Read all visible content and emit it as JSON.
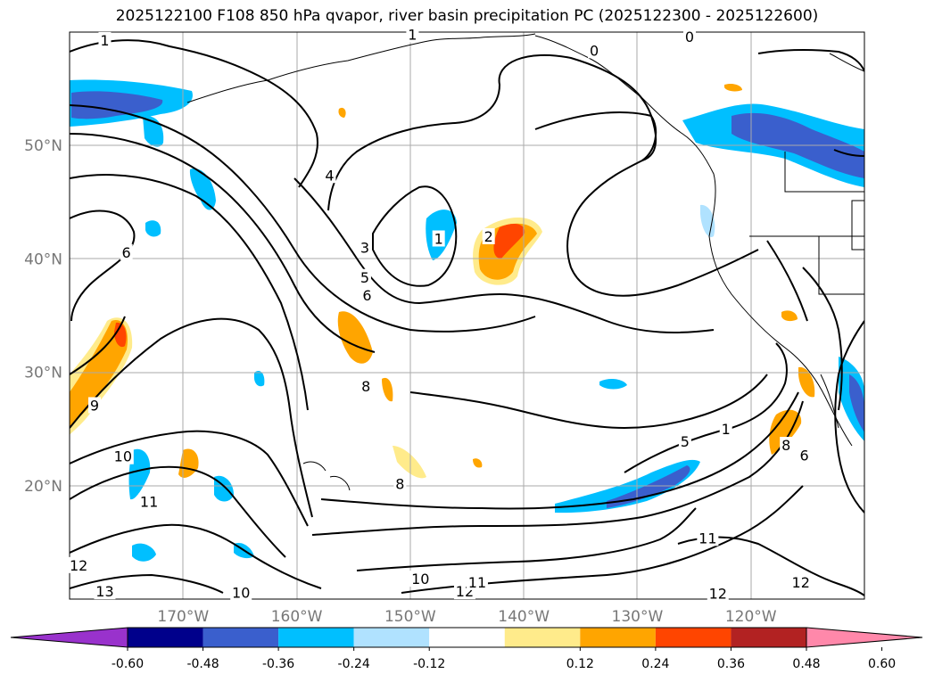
{
  "title": "2025122100 F108 850 hPa qvapor, river basin precipitation PC (2025122300 - 2025122600)",
  "map": {
    "lon_range": [
      -180,
      -110
    ],
    "lat_range": [
      10,
      60
    ],
    "lon_ticks": [
      {
        "value": -170,
        "label": "170°W"
      },
      {
        "value": -160,
        "label": "160°W"
      },
      {
        "value": -150,
        "label": "150°W"
      },
      {
        "value": -140,
        "label": "140°W"
      },
      {
        "value": -130,
        "label": "130°W"
      },
      {
        "value": -120,
        "label": "120°W"
      }
    ],
    "lat_ticks": [
      {
        "value": 20,
        "label": "20°N"
      },
      {
        "value": 30,
        "label": "30°N"
      },
      {
        "value": 40,
        "label": "40°N"
      },
      {
        "value": 50,
        "label": "50°N"
      }
    ],
    "gridlines": true,
    "contour_labels": [
      {
        "text": "1",
        "lon": -176.9,
        "lat": 59.3
      },
      {
        "text": "1",
        "lon": -149.8,
        "lat": 59.8
      },
      {
        "text": "0",
        "lon": -133.8,
        "lat": 58.4
      },
      {
        "text": "0",
        "lon": -125.4,
        "lat": 59.6
      },
      {
        "text": "4",
        "lon": -157.1,
        "lat": 47.4
      },
      {
        "text": "6",
        "lon": -175.0,
        "lat": 40.6
      },
      {
        "text": "3",
        "lon": -154.0,
        "lat": 41.0
      },
      {
        "text": "5",
        "lon": -154.0,
        "lat": 38.4
      },
      {
        "text": "6",
        "lon": -153.8,
        "lat": 36.8
      },
      {
        "text": "1",
        "lon": -147.5,
        "lat": 41.8
      },
      {
        "text": "2",
        "lon": -143.1,
        "lat": 42.0
      },
      {
        "text": "9",
        "lon": -177.8,
        "lat": 27.1
      },
      {
        "text": "8",
        "lon": -153.9,
        "lat": 28.8
      },
      {
        "text": "10",
        "lon": -175.3,
        "lat": 22.6
      },
      {
        "text": "11",
        "lon": -173.0,
        "lat": 18.6
      },
      {
        "text": "8",
        "lon": -150.9,
        "lat": 20.2
      },
      {
        "text": "5",
        "lon": -125.8,
        "lat": 23.9
      },
      {
        "text": "1",
        "lon": -122.2,
        "lat": 25.0
      },
      {
        "text": "8",
        "lon": -116.9,
        "lat": 23.6
      },
      {
        "text": "6",
        "lon": -115.3,
        "lat": 22.7
      },
      {
        "text": "11",
        "lon": -123.8,
        "lat": 15.4
      },
      {
        "text": "12",
        "lon": -179.2,
        "lat": 13.0
      },
      {
        "text": "13",
        "lon": -176.9,
        "lat": 10.7
      },
      {
        "text": "10",
        "lon": -164.9,
        "lat": 10.6
      },
      {
        "text": "10",
        "lon": -149.1,
        "lat": 11.8
      },
      {
        "text": "12",
        "lon": -145.2,
        "lat": 10.7
      },
      {
        "text": "11",
        "lon": -144.1,
        "lat": 11.5
      },
      {
        "text": "12",
        "lon": -122.9,
        "lat": 10.5
      },
      {
        "text": "12",
        "lon": -115.6,
        "lat": 11.5
      }
    ]
  },
  "colorbar": {
    "ticks": [
      "-0.60",
      "-0.48",
      "-0.36",
      "-0.24",
      "-0.12",
      "0.12",
      "0.24",
      "0.36",
      "0.48",
      "0.60"
    ],
    "colors": [
      "#9932cc",
      "#00008b",
      "#3a5fcd",
      "#00bfff",
      "#b0e2ff",
      "#ffffff",
      "#ffeb8b",
      "#ffa500",
      "#ff4500",
      "#b22222",
      "#ff88aa"
    ]
  }
}
